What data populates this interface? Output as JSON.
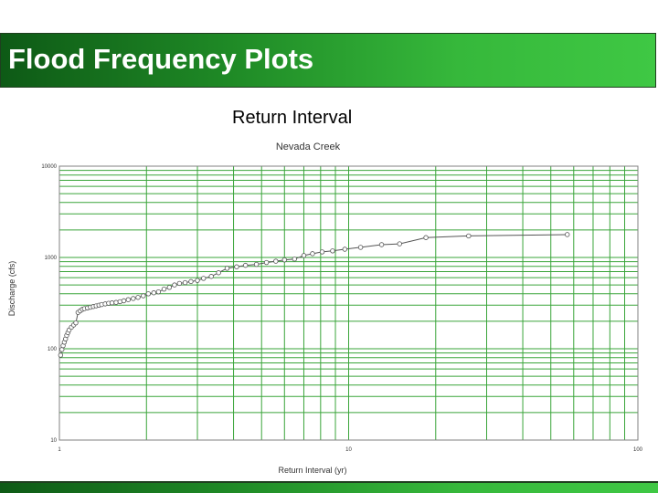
{
  "slide": {
    "title": "Flood Frequency Plots",
    "subtitle": "Return Interval"
  },
  "colors": {
    "title_bar": "#2e9e33",
    "grid": "#3aa53a",
    "axis": "#808080",
    "series_line": "#555555",
    "marker": "#555555"
  },
  "chart_data": {
    "type": "scatter",
    "title": "Nevada Creek",
    "xlabel": "Return Interval (yr)",
    "ylabel": "Discharge (cfs)",
    "xscale": "log",
    "yscale": "log",
    "xlim": [
      1,
      100
    ],
    "ylim": [
      10,
      10000
    ],
    "x_tick_labels": [
      "1",
      "10",
      "100"
    ],
    "y_tick_labels": [
      "10",
      "100",
      "1000",
      "10000"
    ],
    "grid": true,
    "series": [
      {
        "marker": "open-circle",
        "line": true,
        "points": [
          [
            1.01,
            85
          ],
          [
            1.02,
            98
          ],
          [
            1.03,
            108
          ],
          [
            1.04,
            118
          ],
          [
            1.05,
            128
          ],
          [
            1.06,
            140
          ],
          [
            1.07,
            150
          ],
          [
            1.08,
            160
          ],
          [
            1.1,
            172
          ],
          [
            1.12,
            182
          ],
          [
            1.14,
            192
          ],
          [
            1.16,
            250
          ],
          [
            1.18,
            260
          ],
          [
            1.2,
            270
          ],
          [
            1.22,
            275
          ],
          [
            1.25,
            280
          ],
          [
            1.28,
            285
          ],
          [
            1.31,
            290
          ],
          [
            1.34,
            295
          ],
          [
            1.37,
            300
          ],
          [
            1.4,
            305
          ],
          [
            1.44,
            310
          ],
          [
            1.48,
            315
          ],
          [
            1.52,
            318
          ],
          [
            1.57,
            322
          ],
          [
            1.62,
            328
          ],
          [
            1.67,
            335
          ],
          [
            1.73,
            345
          ],
          [
            1.8,
            355
          ],
          [
            1.87,
            365
          ],
          [
            1.95,
            380
          ],
          [
            2.03,
            400
          ],
          [
            2.12,
            410
          ],
          [
            2.2,
            420
          ],
          [
            2.3,
            450
          ],
          [
            2.4,
            470
          ],
          [
            2.5,
            500
          ],
          [
            2.6,
            520
          ],
          [
            2.72,
            530
          ],
          [
            2.85,
            545
          ],
          [
            3.0,
            560
          ],
          [
            3.15,
            590
          ],
          [
            3.35,
            620
          ],
          [
            3.55,
            680
          ],
          [
            3.8,
            760
          ],
          [
            4.1,
            790
          ],
          [
            4.4,
            820
          ],
          [
            4.8,
            840
          ],
          [
            5.2,
            880
          ],
          [
            5.6,
            910
          ],
          [
            6.0,
            940
          ],
          [
            6.5,
            960
          ],
          [
            7.0,
            1050
          ],
          [
            7.5,
            1100
          ],
          [
            8.1,
            1150
          ],
          [
            8.8,
            1180
          ],
          [
            9.7,
            1230
          ],
          [
            11.0,
            1290
          ],
          [
            13.0,
            1380
          ],
          [
            15.0,
            1410
          ],
          [
            18.5,
            1650
          ],
          [
            26.0,
            1720
          ],
          [
            57.0,
            1780
          ]
        ]
      }
    ]
  }
}
